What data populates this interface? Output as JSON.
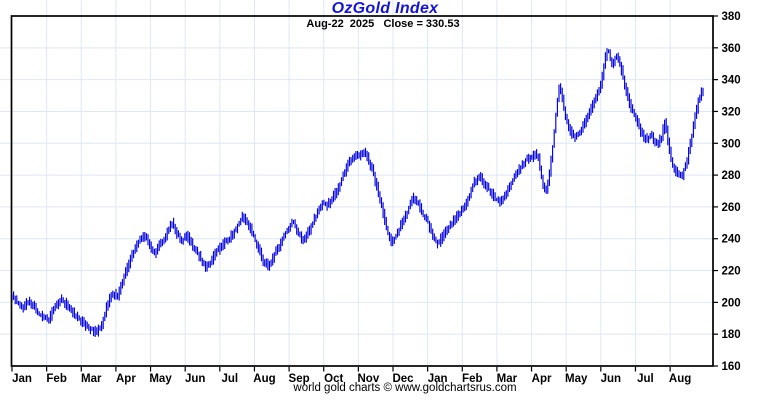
{
  "title": "OzGold Index",
  "annotation": "Aug-22  2025   Close = 330.53",
  "footer": "world gold charts © www.goldchartsrus.com",
  "colors": {
    "series": "#0000e0",
    "title": "#1414d6",
    "grid": "#dce8f5",
    "axis": "#000000",
    "background": "#ffffff"
  },
  "chart_data": {
    "type": "line",
    "style": "daily high-low vertical price bars",
    "title": "OzGold Index",
    "last_date": "Aug-22 2025",
    "last_close": 330.53,
    "grid": true,
    "legend": false,
    "x_axis": {
      "start": "Jan 2024",
      "end": "Aug 2025",
      "months_span": 19.95,
      "tick_labels": [
        "Jan",
        "Feb",
        "Mar",
        "Apr",
        "May",
        "Jun",
        "Jul",
        "Aug",
        "Sep",
        "Oct",
        "Nov",
        "Dec",
        "Jan",
        "Feb",
        "Mar",
        "Apr",
        "May",
        "Jun",
        "Jul",
        "Aug"
      ]
    },
    "y_axis": {
      "min": 160,
      "max": 380,
      "tick_step": 20,
      "position": "right",
      "tick_labels": [
        "160",
        "180",
        "200",
        "220",
        "240",
        "260",
        "280",
        "300",
        "320",
        "340",
        "360",
        "380"
      ]
    },
    "series": [
      {
        "name": "OzGold Index",
        "color": "#0000e0",
        "keypoints_month_value": [
          [
            0.0,
            204
          ],
          [
            0.15,
            200
          ],
          [
            0.3,
            196
          ],
          [
            0.45,
            201
          ],
          [
            0.6,
            198
          ],
          [
            0.75,
            193
          ],
          [
            0.9,
            191
          ],
          [
            1.05,
            189
          ],
          [
            1.2,
            196
          ],
          [
            1.4,
            202
          ],
          [
            1.55,
            199
          ],
          [
            1.7,
            195
          ],
          [
            1.85,
            191
          ],
          [
            2.0,
            188
          ],
          [
            2.2,
            184
          ],
          [
            2.45,
            181
          ],
          [
            2.6,
            187
          ],
          [
            2.75,
            199
          ],
          [
            2.9,
            206
          ],
          [
            3.05,
            204
          ],
          [
            3.2,
            214
          ],
          [
            3.4,
            226
          ],
          [
            3.6,
            237
          ],
          [
            3.8,
            243
          ],
          [
            3.95,
            237
          ],
          [
            4.1,
            231
          ],
          [
            4.3,
            237
          ],
          [
            4.5,
            245
          ],
          [
            4.62,
            250
          ],
          [
            4.75,
            243
          ],
          [
            4.9,
            239
          ],
          [
            5.05,
            242
          ],
          [
            5.2,
            236
          ],
          [
            5.4,
            229
          ],
          [
            5.6,
            222
          ],
          [
            5.75,
            226
          ],
          [
            5.9,
            232
          ],
          [
            6.1,
            237
          ],
          [
            6.3,
            241
          ],
          [
            6.5,
            248
          ],
          [
            6.65,
            254
          ],
          [
            6.8,
            250
          ],
          [
            6.95,
            243
          ],
          [
            7.1,
            234
          ],
          [
            7.25,
            226
          ],
          [
            7.4,
            223
          ],
          [
            7.55,
            229
          ],
          [
            7.7,
            235
          ],
          [
            7.85,
            242
          ],
          [
            8.0,
            247
          ],
          [
            8.1,
            251
          ],
          [
            8.25,
            244
          ],
          [
            8.4,
            239
          ],
          [
            8.55,
            244
          ],
          [
            8.7,
            251
          ],
          [
            8.85,
            258
          ],
          [
            8.95,
            263
          ],
          [
            9.1,
            261
          ],
          [
            9.25,
            266
          ],
          [
            9.4,
            271
          ],
          [
            9.55,
            279
          ],
          [
            9.7,
            287
          ],
          [
            9.85,
            292
          ],
          [
            10.0,
            292
          ],
          [
            10.12,
            295
          ],
          [
            10.25,
            291
          ],
          [
            10.4,
            283
          ],
          [
            10.55,
            271
          ],
          [
            10.7,
            257
          ],
          [
            10.85,
            243
          ],
          [
            10.95,
            238
          ],
          [
            11.1,
            242
          ],
          [
            11.25,
            250
          ],
          [
            11.4,
            256
          ],
          [
            11.55,
            266
          ],
          [
            11.7,
            263
          ],
          [
            11.85,
            255
          ],
          [
            12.0,
            251
          ],
          [
            12.15,
            240
          ],
          [
            12.3,
            237
          ],
          [
            12.45,
            243
          ],
          [
            12.6,
            247
          ],
          [
            12.75,
            252
          ],
          [
            12.9,
            256
          ],
          [
            13.05,
            259
          ],
          [
            13.2,
            267
          ],
          [
            13.35,
            276
          ],
          [
            13.5,
            279
          ],
          [
            13.65,
            274
          ],
          [
            13.8,
            270
          ],
          [
            13.95,
            265
          ],
          [
            14.1,
            263
          ],
          [
            14.25,
            269
          ],
          [
            14.4,
            275
          ],
          [
            14.55,
            280
          ],
          [
            14.7,
            286
          ],
          [
            14.85,
            290
          ],
          [
            15.0,
            291
          ],
          [
            15.1,
            294
          ],
          [
            15.2,
            290
          ],
          [
            15.3,
            277
          ],
          [
            15.4,
            268
          ],
          [
            15.52,
            282
          ],
          [
            15.62,
            300
          ],
          [
            15.72,
            322
          ],
          [
            15.8,
            336
          ],
          [
            15.88,
            328
          ],
          [
            15.98,
            317
          ],
          [
            16.1,
            308
          ],
          [
            16.25,
            303
          ],
          [
            16.4,
            308
          ],
          [
            16.55,
            314
          ],
          [
            16.7,
            321
          ],
          [
            16.85,
            329
          ],
          [
            17.0,
            337
          ],
          [
            17.1,
            351
          ],
          [
            17.2,
            360
          ],
          [
            17.32,
            349
          ],
          [
            17.45,
            355
          ],
          [
            17.58,
            347
          ],
          [
            17.7,
            336
          ],
          [
            17.85,
            323
          ],
          [
            18.0,
            317
          ],
          [
            18.15,
            307
          ],
          [
            18.3,
            302
          ],
          [
            18.45,
            306
          ],
          [
            18.6,
            299
          ],
          [
            18.75,
            304
          ],
          [
            18.85,
            314
          ],
          [
            18.95,
            299
          ],
          [
            19.05,
            287
          ],
          [
            19.2,
            281
          ],
          [
            19.35,
            280
          ],
          [
            19.5,
            291
          ],
          [
            19.62,
            304
          ],
          [
            19.72,
            317
          ],
          [
            19.82,
            328
          ],
          [
            19.95,
            334
          ]
        ]
      }
    ]
  }
}
